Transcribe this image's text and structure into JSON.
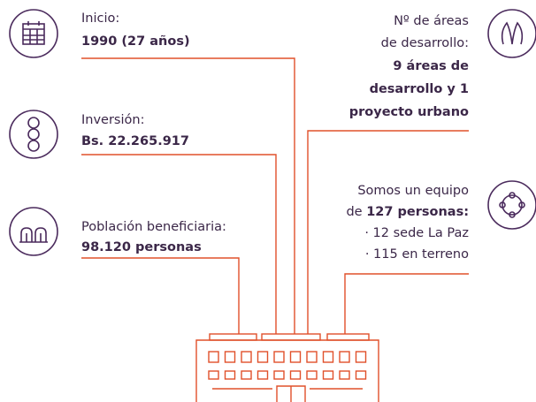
{
  "left": [
    {
      "label": "Inicio:",
      "value": "1990 (27 años)"
    },
    {
      "label": "Inversión:",
      "value": "Bs. 22.265.917"
    },
    {
      "label": "Población beneficiaria:",
      "value": "98.120 personas"
    }
  ],
  "right": [
    {
      "label_lines": [
        "Nº de áreas",
        "de desarrollo:"
      ],
      "value_lines": [
        "9 áreas de",
        "desarrollo y 1",
        "proyecto urbano"
      ]
    },
    {
      "label_lines": [
        "Somos un equipo",
        "de"
      ],
      "value": "127 personas:",
      "detail_lines": [
        "· 12 sede La Paz",
        "· 115 en terreno"
      ]
    }
  ]
}
